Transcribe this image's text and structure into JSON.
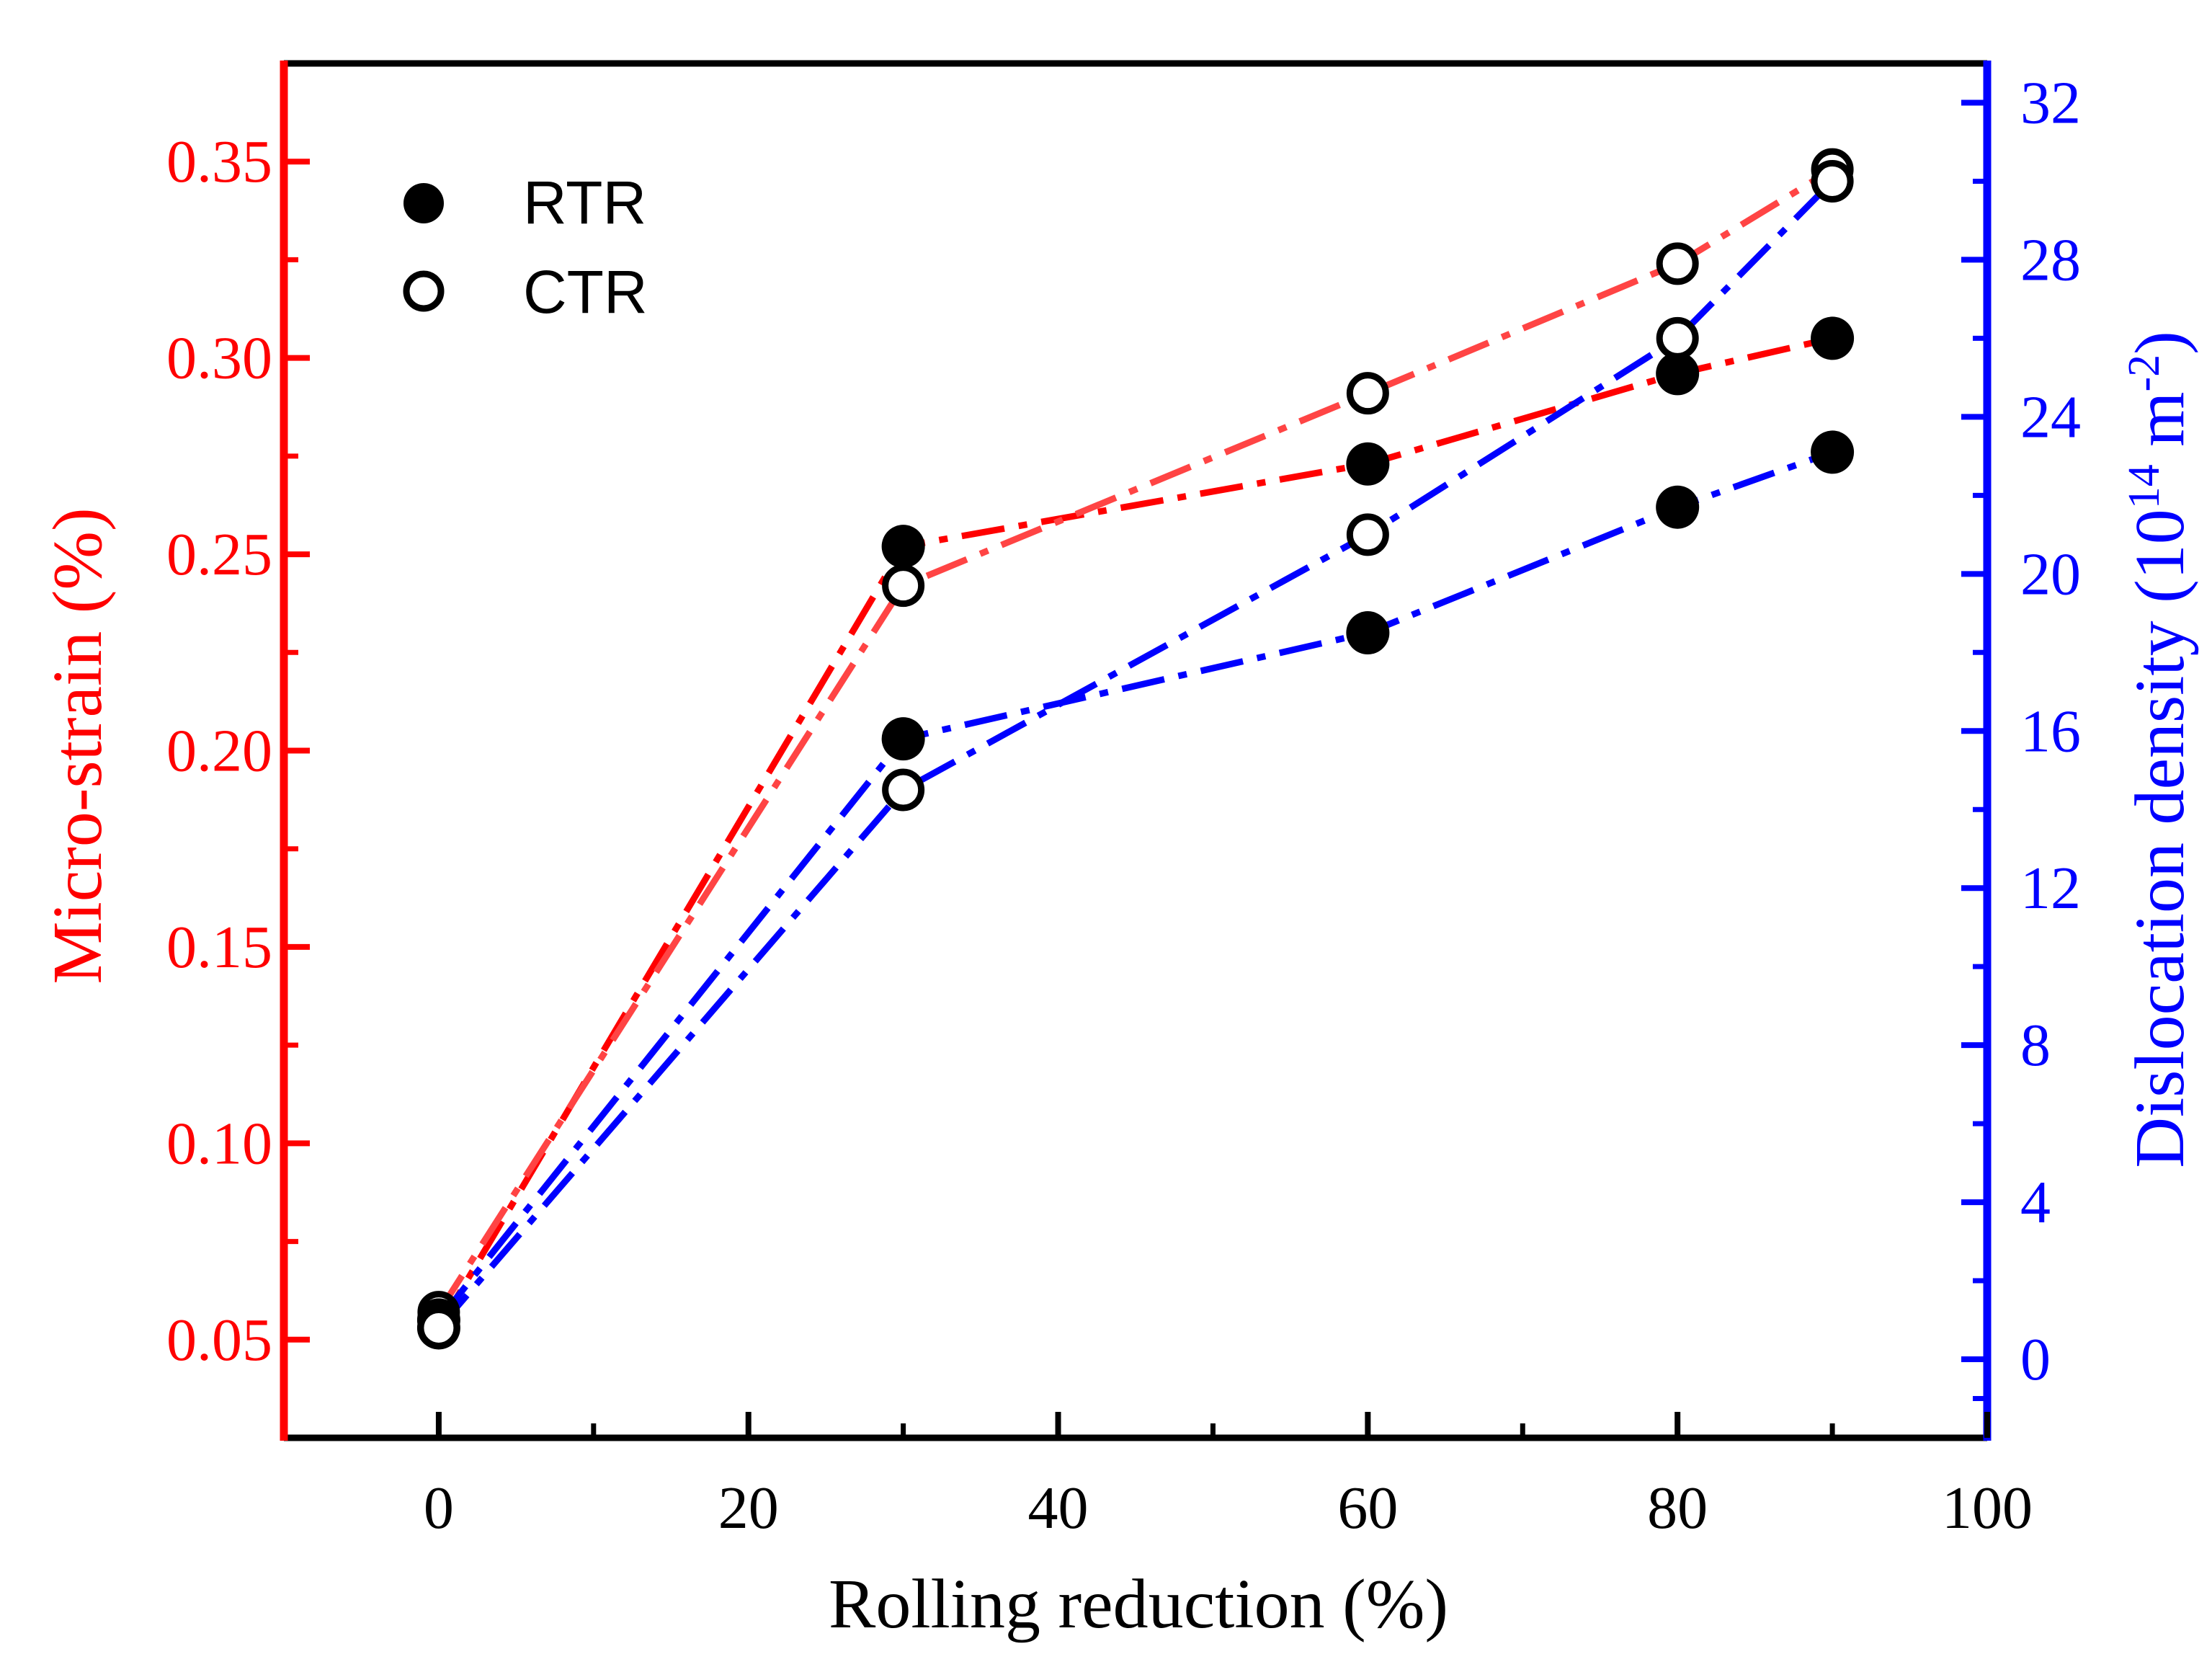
{
  "chart_data": {
    "type": "line",
    "title": "",
    "x": [
      0,
      30,
      60,
      80,
      90
    ],
    "xlabel": "Rolling reduction (%)",
    "xlim": [
      -10,
      100
    ],
    "xticks": [
      0,
      20,
      40,
      60,
      80,
      100
    ],
    "ylabel_left": "Micro-strain (%)",
    "ylim_left": [
      0.025,
      0.375
    ],
    "yticks_left": [
      "0.05",
      "0.10",
      "0.15",
      "0.20",
      "0.25",
      "0.30",
      "0.35"
    ],
    "ylabel_right": "Dislocation density (10",
    "ylabel_right_sup1": "14",
    "ylabel_right_unit": " m",
    "ylabel_right_sup2": "-2",
    "ylabel_right_close": ")",
    "ylim_right": [
      -2,
      33
    ],
    "yticks_right": [
      "0",
      "4",
      "8",
      "12",
      "16",
      "20",
      "24",
      "28",
      "32"
    ],
    "legend": {
      "position": "top-left",
      "entries": [
        {
          "label": "RTR",
          "marker": "filled-circle"
        },
        {
          "label": "CTR",
          "marker": "open-circle"
        }
      ]
    },
    "series": [
      {
        "name": "RTR micro-strain",
        "axis": "left",
        "marker": "filled",
        "color": "#ff0000",
        "values": [
          0.053,
          0.252,
          0.273,
          0.296,
          0.305
        ]
      },
      {
        "name": "CTR micro-strain",
        "axis": "left",
        "marker": "open",
        "color": "#ff4444",
        "values": [
          0.057,
          0.242,
          0.291,
          0.324,
          0.348
        ]
      },
      {
        "name": "RTR dislocation density",
        "axis": "right",
        "marker": "filled",
        "color": "#0000ff",
        "values": [
          1.0,
          15.8,
          18.5,
          21.7,
          23.1
        ]
      },
      {
        "name": "CTR dislocation density",
        "axis": "right",
        "marker": "open",
        "color": "#0000ff",
        "values": [
          0.8,
          14.5,
          21.0,
          26.0,
          30.0
        ]
      }
    ]
  }
}
